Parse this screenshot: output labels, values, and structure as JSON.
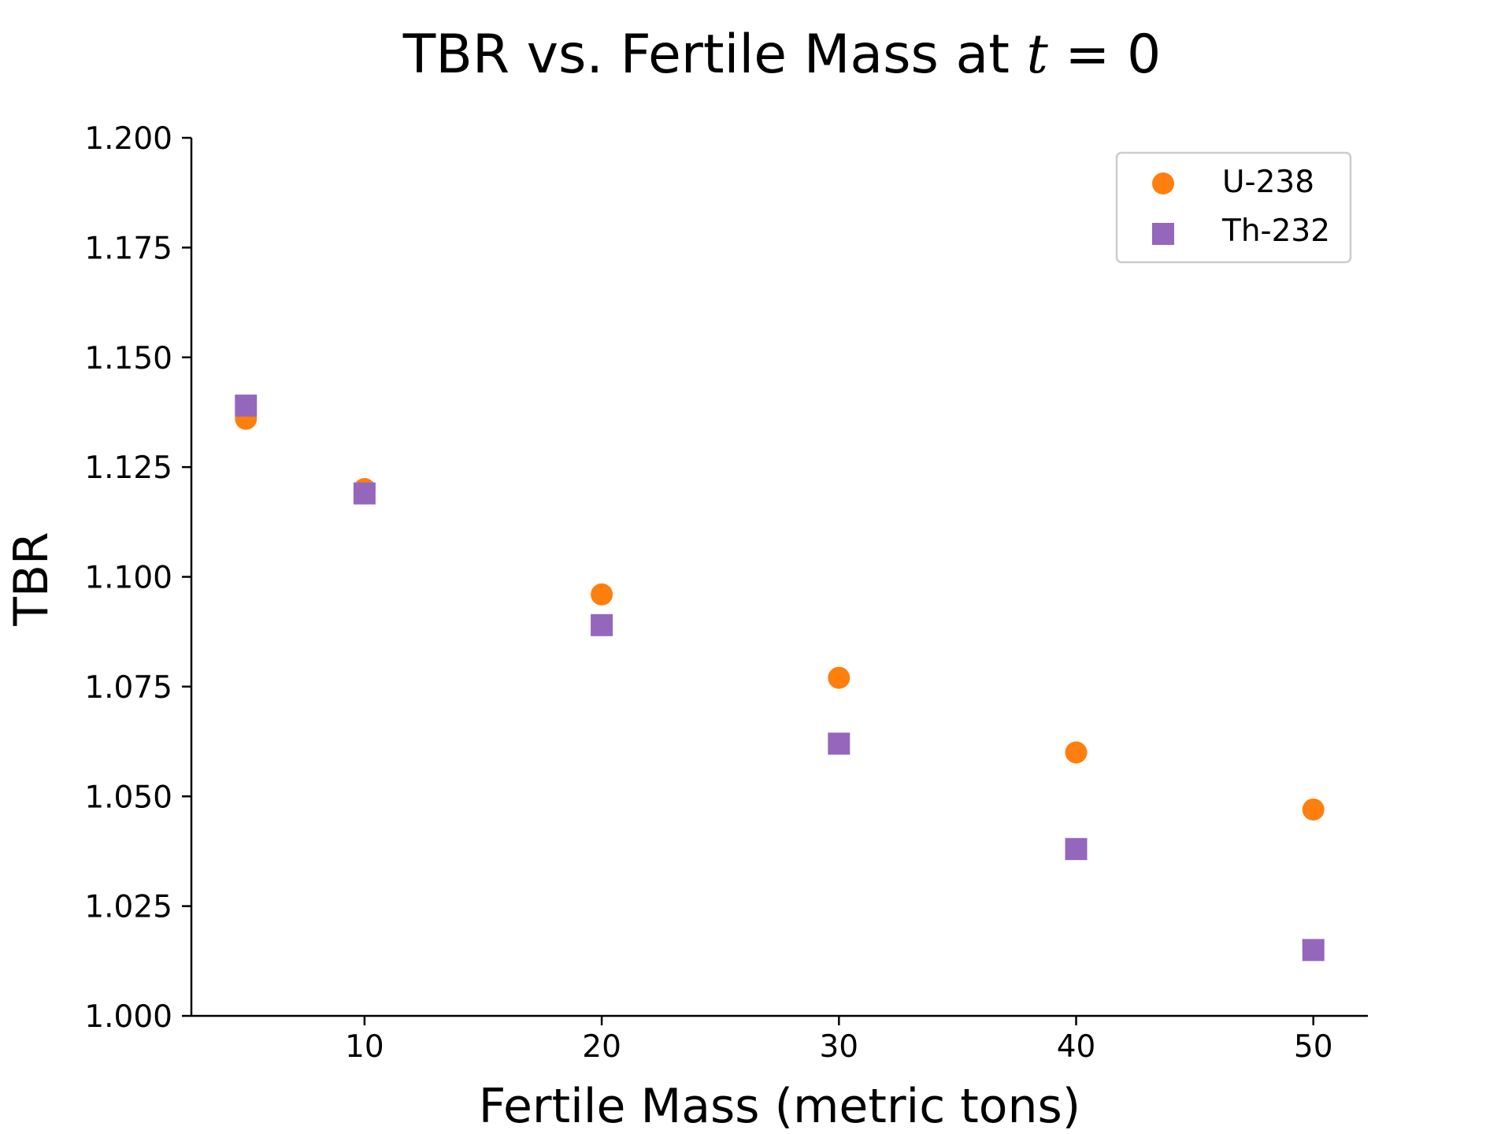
{
  "chart_data": {
    "type": "scatter",
    "title_prefix": "TBR vs. Fertile Mass at ",
    "title_var": "t",
    "title_suffix": " = 0",
    "xlabel": "Fertile Mass (metric tons)",
    "ylabel": "TBR",
    "xlim": [
      2.7,
      52.3
    ],
    "ylim": [
      1.0,
      1.2
    ],
    "x_ticks": [
      10,
      20,
      30,
      40,
      50
    ],
    "x_tick_labels": [
      "10",
      "20",
      "30",
      "40",
      "50"
    ],
    "y_ticks": [
      1.0,
      1.025,
      1.05,
      1.075,
      1.1,
      1.125,
      1.15,
      1.175,
      1.2
    ],
    "y_tick_labels": [
      "1.000",
      "1.025",
      "1.050",
      "1.075",
      "1.100",
      "1.125",
      "1.150",
      "1.175",
      "1.200"
    ],
    "grid": false,
    "legend_position": "upper right",
    "series": [
      {
        "name": "U-238",
        "marker": "circle",
        "color": "#ff7f0e",
        "x": [
          5,
          10,
          20,
          30,
          40,
          50
        ],
        "y": [
          1.136,
          1.12,
          1.096,
          1.077,
          1.06,
          1.047
        ]
      },
      {
        "name": "Th-232",
        "marker": "square",
        "color": "#9467bd",
        "x": [
          5,
          10,
          20,
          30,
          40,
          50
        ],
        "y": [
          1.139,
          1.119,
          1.089,
          1.062,
          1.038,
          1.015
        ]
      }
    ]
  }
}
